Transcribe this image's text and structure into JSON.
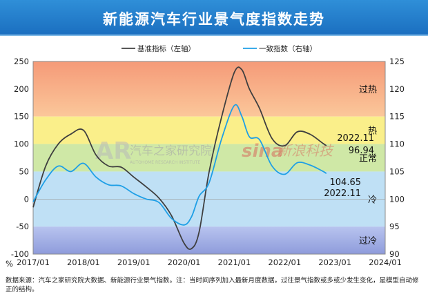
{
  "title": "新能源汽车行业景气度指数走势",
  "footnote": "数据来源：汽车之家研究院大数据、新能源行业景气指数。注：当时间序列加入最新月度数据，过往景气指数或多或少发生变化，是模型自动修正的结构。",
  "watermarks": {
    "left_logo": "AR",
    "left_text": "汽车之家研究院",
    "left_sub": "AUTOHOME RESEARCH INSTITUTE",
    "right_logo": "sina",
    "right_text": "新浪科技"
  },
  "colors": {
    "series1": "#3f3f3f",
    "series2": "#1e9fe6",
    "zone_hot_top": "#f6a27d",
    "zone_hot": "#faef8a",
    "zone_normal": "#cfe8a6",
    "zone_cold": "#bfe0f5",
    "zone_cold_bottom": "#9aa8e0"
  },
  "chart_data": {
    "type": "line",
    "unit_label": "%",
    "x_labels": [
      "2017/01",
      "2018/01",
      "2019/01",
      "2020/01",
      "2021/01",
      "2022/01",
      "2023/01",
      "2024/01"
    ],
    "x_range": [
      2017.0,
      2024.0
    ],
    "left_axis": {
      "ylim": [
        -100,
        250
      ],
      "ticks": [
        -100,
        -50,
        0,
        50,
        100,
        150,
        200,
        250
      ]
    },
    "right_axis": {
      "ylim": [
        90,
        125
      ],
      "ticks": [
        90,
        95,
        100,
        105,
        110,
        115,
        120,
        125
      ]
    },
    "zones": [
      {
        "label": "过热",
        "from": 150,
        "to": 250
      },
      {
        "label": "热",
        "from": 100,
        "to": 150
      },
      {
        "label": "正常",
        "from": 50,
        "to": 100
      },
      {
        "label": "冷",
        "from": -50,
        "to": 50
      },
      {
        "label": "过冷",
        "from": -100,
        "to": -50
      }
    ],
    "series": [
      {
        "name": "基准指标（左轴）",
        "axis": "left",
        "x": [
          2017.0,
          2017.25,
          2017.5,
          2017.75,
          2018.0,
          2018.25,
          2018.5,
          2018.75,
          2019.0,
          2019.25,
          2019.5,
          2019.75,
          2020.0,
          2020.15,
          2020.3,
          2020.5,
          2020.75,
          2021.0,
          2021.15,
          2021.3,
          2021.5,
          2021.75,
          2022.0,
          2022.25,
          2022.5,
          2022.75,
          2022.83
        ],
        "values": [
          -15,
          60,
          100,
          118,
          125,
          80,
          60,
          58,
          40,
          22,
          2,
          -30,
          -80,
          -90,
          -60,
          50,
          150,
          230,
          235,
          200,
          165,
          110,
          97,
          122,
          118,
          102,
          96.94
        ]
      },
      {
        "name": "一致指数（右轴）",
        "axis": "right",
        "x": [
          2017.0,
          2017.25,
          2017.5,
          2017.75,
          2018.0,
          2018.25,
          2018.5,
          2018.75,
          2019.0,
          2019.25,
          2019.5,
          2019.75,
          2020.0,
          2020.15,
          2020.3,
          2020.5,
          2020.75,
          2021.0,
          2021.15,
          2021.3,
          2021.5,
          2021.75,
          2022.0,
          2022.25,
          2022.5,
          2022.75,
          2022.83
        ],
        "values": [
          99.5,
          103.5,
          106.0,
          105.0,
          106.5,
          104.0,
          102.6,
          102.4,
          101.0,
          100.0,
          99.4,
          96.5,
          95.3,
          96.8,
          100.5,
          103.0,
          111.0,
          117.0,
          115.0,
          111.3,
          110.8,
          106.0,
          104.5,
          106.6,
          106.2,
          105.1,
          104.65
        ]
      }
    ],
    "annotations": [
      {
        "series": "基准指标（左轴）",
        "date": "2022.11",
        "value": "96.94"
      },
      {
        "series": "一致指数（右轴）",
        "date": "2022.11",
        "value": "104.65"
      }
    ]
  }
}
